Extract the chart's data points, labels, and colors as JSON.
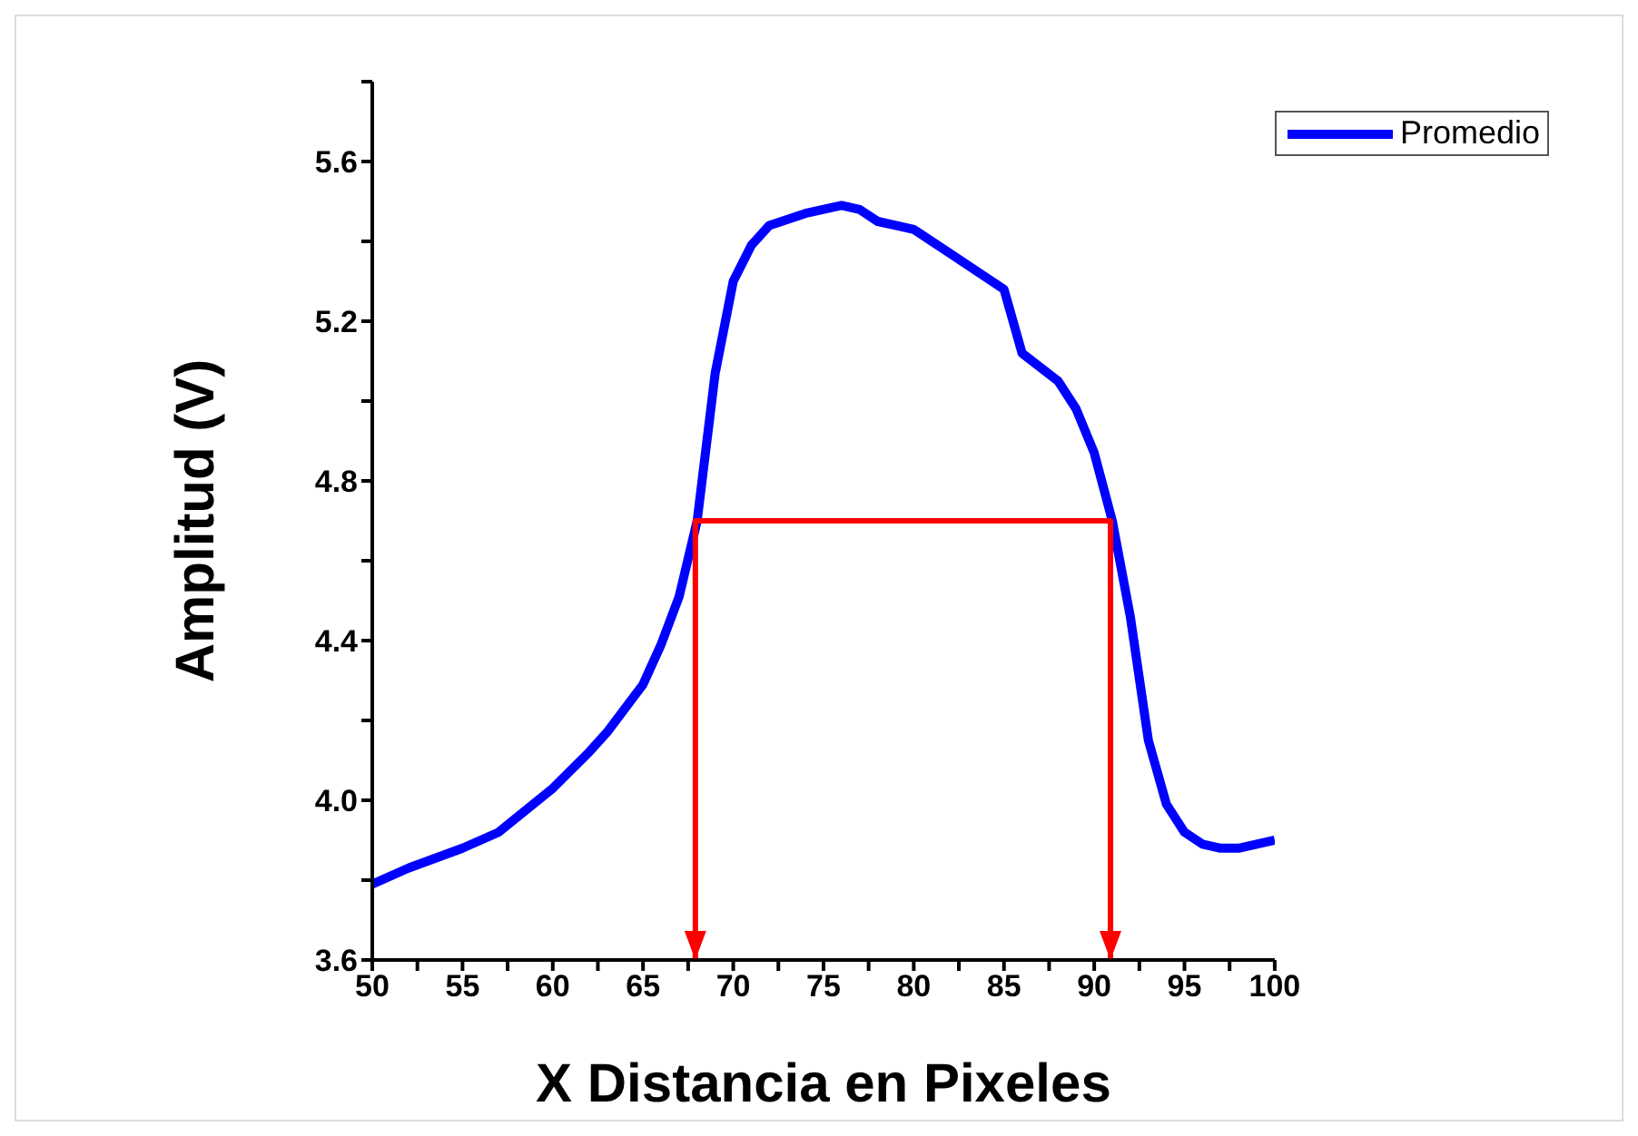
{
  "chart_data": {
    "type": "line",
    "xlabel": "X Distancia en Pixeles",
    "ylabel": "Amplitud (V)",
    "xlim": [
      50,
      100
    ],
    "ylim": [
      3.6,
      5.8
    ],
    "xticks": [
      50,
      {
        "value": 52.5,
        "label": null
      },
      55,
      {
        "value": 57.5,
        "label": null
      },
      60,
      {
        "value": 62.5,
        "label": null
      },
      65,
      {
        "value": 67.5,
        "label": null
      },
      70,
      {
        "value": 72.5,
        "label": null
      },
      75,
      {
        "value": 77.5,
        "label": null
      },
      80,
      {
        "value": 82.5,
        "label": null
      },
      85,
      {
        "value": 87.5,
        "label": null
      },
      90,
      {
        "value": 92.5,
        "label": null
      },
      95,
      {
        "value": 97.5,
        "label": null
      },
      100
    ],
    "yticks": [
      {
        "value": 3.6,
        "label": "3.6"
      },
      {
        "value": 3.8,
        "label": null
      },
      {
        "value": 4.0,
        "label": "4.0"
      },
      {
        "value": 4.2,
        "label": null
      },
      {
        "value": 4.4,
        "label": "4.4"
      },
      {
        "value": 4.6,
        "label": null
      },
      {
        "value": 4.8,
        "label": "4.8"
      },
      {
        "value": 5.0,
        "label": null
      },
      {
        "value": 5.2,
        "label": "5.2"
      },
      {
        "value": 5.4,
        "label": null
      },
      {
        "value": 5.6,
        "label": "5.6"
      },
      {
        "value": 5.8,
        "label": null
      }
    ],
    "grid": false,
    "legend": "top right",
    "marker": "none",
    "line_style": "solid",
    "series": [
      {
        "name": "Promedio",
        "color": "#0000ff",
        "x": [
          50,
          52,
          55,
          57,
          60,
          62,
          63,
          65,
          66,
          67,
          68,
          69,
          70,
          71,
          72,
          74,
          76,
          77,
          78,
          80,
          82,
          84,
          85,
          86,
          88,
          89,
          90,
          91,
          92,
          93,
          94,
          95,
          96,
          97,
          98,
          100
        ],
        "values": [
          3.79,
          3.83,
          3.88,
          3.92,
          4.03,
          4.12,
          4.17,
          4.29,
          4.39,
          4.51,
          4.7,
          5.07,
          5.3,
          5.39,
          5.44,
          5.47,
          5.49,
          5.48,
          5.45,
          5.43,
          5.37,
          5.31,
          5.28,
          5.12,
          5.05,
          4.98,
          4.87,
          4.7,
          4.46,
          4.15,
          3.99,
          3.92,
          3.89,
          3.88,
          3.88,
          3.9
        ]
      },
      {
        "color": "#ff0000",
        "x": [
          67.9,
          67.9,
          90.9,
          90.9
        ],
        "values": [
          3.6,
          4.7,
          4.7,
          3.6
        ]
      }
    ]
  }
}
